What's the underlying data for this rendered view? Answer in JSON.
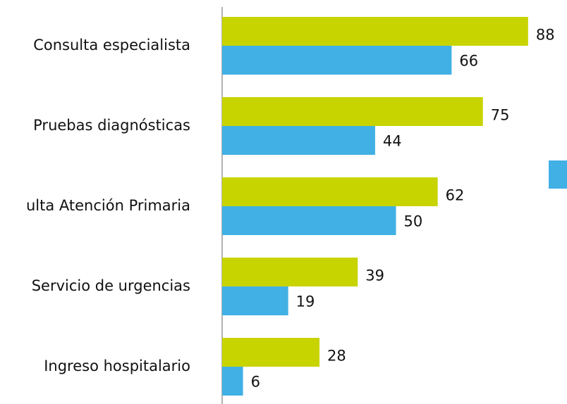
{
  "chart_data": {
    "type": "bar",
    "orientation": "horizontal",
    "categories": [
      "Consulta especialista",
      "Pruebas diagnósticas",
      "ulta Atención Primaria",
      "Servicio de urgencias",
      "Ingreso hospitalario"
    ],
    "series": [
      {
        "color": "#c8d400",
        "values": [
          88,
          75,
          62,
          39,
          28
        ]
      },
      {
        "color": "#41b0e4",
        "values": [
          66,
          44,
          50,
          19,
          6
        ]
      }
    ],
    "xlim": [
      0,
      100
    ]
  }
}
